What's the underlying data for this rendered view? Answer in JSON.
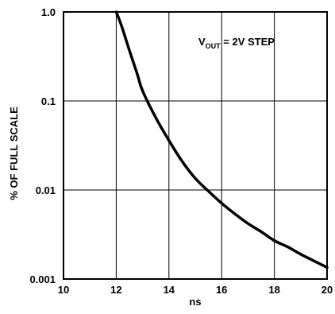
{
  "chart_data": {
    "type": "line",
    "title": "",
    "xlabel": "ns",
    "ylabel": "% OF FULL SCALE",
    "xlim": [
      10,
      20
    ],
    "ylim": [
      0.001,
      1.0
    ],
    "y_scale": "log",
    "grid": true,
    "x_ticks": [
      10,
      12,
      14,
      16,
      18,
      20
    ],
    "x_tick_labels": [
      "10",
      "12",
      "14",
      "16",
      "18",
      "20"
    ],
    "y_ticks": [
      0.001,
      0.01,
      0.1,
      1.0
    ],
    "y_tick_labels": [
      "0.001",
      "0.01",
      "0.1",
      "1.0"
    ],
    "annotation": {
      "main": "V",
      "sub": "OUT",
      "rest": " = 2V STEP"
    },
    "series": [
      {
        "x": [
          12.0,
          12.2,
          12.5,
          12.8,
          13.0,
          13.5,
          14.0,
          14.5,
          15.0,
          15.5,
          16.0,
          16.5,
          17.0,
          17.5,
          18.0,
          18.5,
          19.0,
          19.5,
          20.0
        ],
        "values": [
          1.0,
          0.7,
          0.37,
          0.2,
          0.13,
          0.065,
          0.036,
          0.021,
          0.0135,
          0.0097,
          0.0071,
          0.0054,
          0.0042,
          0.0034,
          0.0027,
          0.0023,
          0.0019,
          0.0016,
          0.00135
        ],
        "color": "#000000"
      }
    ]
  }
}
